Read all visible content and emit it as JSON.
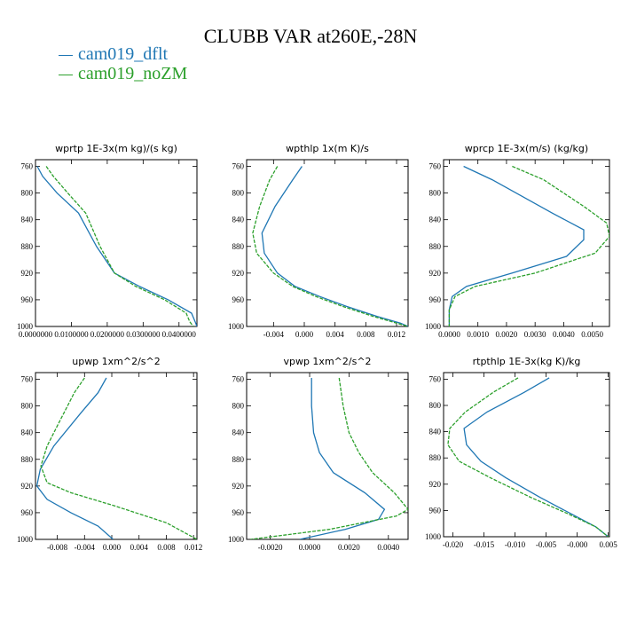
{
  "title": "CLUBB VAR at260E,-28N",
  "legend": [
    {
      "name": "cam019_dflt",
      "color": "#1f77b4"
    },
    {
      "name": "cam019_noZM",
      "color": "#2ca02c"
    }
  ],
  "chart_data": [
    {
      "type": "line",
      "title": "wprtp   1E-3x(m kg)/(s kg)",
      "xlim": [
        0.0,
        0.045
      ],
      "ylim": [
        1000,
        750
      ],
      "xticks": [
        0.0,
        0.01,
        0.02,
        0.03,
        0.04
      ],
      "xtick_labels": [
        "0.0000000",
        "0.0100000",
        "0.0200000",
        "0.0300000",
        "0.0400000"
      ],
      "yticks": [
        760,
        800,
        840,
        880,
        920,
        960,
        1000
      ],
      "series": [
        {
          "name": "cam019_dflt",
          "x": [
            0.0005,
            0.002,
            0.006,
            0.012,
            0.017,
            0.022,
            0.029,
            0.037,
            0.0435,
            0.0445,
            0.045
          ],
          "y": [
            760,
            775,
            800,
            830,
            880,
            920,
            940,
            960,
            980,
            993,
            1000
          ]
        },
        {
          "name": "cam019_noZM",
          "x": [
            0.003,
            0.005,
            0.009,
            0.014,
            0.018,
            0.022,
            0.028,
            0.036,
            0.042,
            0.043,
            0.044
          ],
          "y": [
            760,
            775,
            800,
            830,
            880,
            920,
            940,
            960,
            980,
            993,
            1000
          ]
        }
      ]
    },
    {
      "type": "line",
      "title": "wpthlp   1x(m K)/s",
      "xlim": [
        -0.0075,
        0.0135
      ],
      "ylim": [
        1000,
        750
      ],
      "xticks": [
        -0.004,
        0.0,
        0.004,
        0.008,
        0.012
      ],
      "xtick_labels": [
        "-0.004",
        "0.000",
        "0.004",
        "0.008",
        "0.012"
      ],
      "yticks": [
        760,
        800,
        840,
        880,
        920,
        960,
        1000
      ],
      "series": [
        {
          "name": "cam019_dflt",
          "x": [
            -0.0003,
            -0.0015,
            -0.0038,
            -0.0055,
            -0.0052,
            -0.0035,
            -0.0012,
            0.002,
            0.0055,
            0.0095,
            0.0125,
            0.0135
          ],
          "y": [
            760,
            780,
            820,
            860,
            890,
            920,
            940,
            955,
            970,
            985,
            995,
            1000
          ]
        },
        {
          "name": "cam019_noZM",
          "x": [
            -0.0035,
            -0.0045,
            -0.0058,
            -0.0067,
            -0.0062,
            -0.004,
            -0.0015,
            0.0015,
            0.005,
            0.009,
            0.012,
            0.0135
          ],
          "y": [
            760,
            780,
            820,
            860,
            890,
            920,
            940,
            955,
            970,
            985,
            995,
            1000
          ]
        }
      ]
    },
    {
      "type": "line",
      "title": "wprcp   1E-3x(m/s) (kg/kg)",
      "xlim": [
        -0.0002,
        0.0056
      ],
      "ylim": [
        1000,
        750
      ],
      "xticks": [
        0.0,
        0.001,
        0.002,
        0.003,
        0.004,
        0.005
      ],
      "xtick_labels": [
        "0.0000",
        "0.0010",
        "0.0020",
        "0.0030",
        "0.0040",
        "0.0050"
      ],
      "yticks": [
        760,
        800,
        840,
        880,
        920,
        960,
        1000
      ],
      "series": [
        {
          "name": "cam019_dflt",
          "x": [
            0.0005,
            0.0015,
            0.0036,
            0.0047,
            0.0047,
            0.0041,
            0.0022,
            0.0006,
            0.0001,
            0.0,
            0.0
          ],
          "y": [
            760,
            780,
            830,
            855,
            870,
            895,
            920,
            940,
            955,
            975,
            1000
          ]
        },
        {
          "name": "cam019_noZM",
          "x": [
            0.0022,
            0.0033,
            0.0047,
            0.0055,
            0.0056,
            0.0051,
            0.003,
            0.0009,
            0.0002,
            0.0,
            0.0
          ],
          "y": [
            760,
            780,
            820,
            845,
            865,
            890,
            920,
            940,
            955,
            975,
            1000
          ]
        }
      ]
    },
    {
      "type": "line",
      "title": "upwp   1xm^2/s^2",
      "xlim": [
        -0.0112,
        0.0125
      ],
      "ylim": [
        1000,
        750
      ],
      "xticks": [
        -0.008,
        -0.004,
        0.0,
        0.004,
        0.008,
        0.012
      ],
      "xtick_labels": [
        "-0.008",
        "-0.004",
        "0.000",
        "0.004",
        "0.008",
        "0.012"
      ],
      "yticks": [
        760,
        800,
        840,
        880,
        920,
        960,
        1000
      ],
      "series": [
        {
          "name": "cam019_dflt",
          "x": [
            -0.0008,
            -0.002,
            -0.0045,
            -0.0085,
            -0.0105,
            -0.011,
            -0.0095,
            -0.006,
            -0.002,
            0.0002
          ],
          "y": [
            758,
            780,
            810,
            860,
            895,
            920,
            940,
            960,
            980,
            1000
          ]
        },
        {
          "name": "cam019_noZM",
          "x": [
            -0.004,
            -0.0055,
            -0.0075,
            -0.0095,
            -0.0104,
            -0.0095,
            -0.006,
            0.0005,
            0.008,
            0.0125
          ],
          "y": [
            758,
            780,
            820,
            860,
            890,
            915,
            930,
            950,
            975,
            1000
          ]
        }
      ]
    },
    {
      "type": "line",
      "title": "vpwp   1xm^2/s^2",
      "xlim": [
        -0.0032,
        0.005
      ],
      "ylim": [
        1000,
        750
      ],
      "xticks": [
        -0.002,
        0.0,
        0.002,
        0.004
      ],
      "xtick_labels": [
        "-0.0020",
        "0.0000",
        "0.0020",
        "0.0040"
      ],
      "yticks": [
        760,
        800,
        840,
        880,
        920,
        960,
        1000
      ],
      "series": [
        {
          "name": "cam019_dflt",
          "x": [
            0.0001,
            0.0001,
            0.0002,
            0.0005,
            0.0012,
            0.0028,
            0.0038,
            0.0035,
            0.0018,
            -0.0005
          ],
          "y": [
            758,
            800,
            840,
            870,
            900,
            930,
            955,
            970,
            985,
            1000
          ]
        },
        {
          "name": "cam019_noZM",
          "x": [
            0.0015,
            0.0017,
            0.002,
            0.0025,
            0.0032,
            0.0043,
            0.005,
            0.0044,
            0.001,
            -0.003
          ],
          "y": [
            758,
            800,
            840,
            870,
            900,
            930,
            955,
            965,
            985,
            1000
          ]
        }
      ]
    },
    {
      "type": "line",
      "title": "rtpthlp   1E-3x(kg K)/kg",
      "xlim": [
        -0.0215,
        0.0052
      ],
      "ylim": [
        1000,
        750
      ],
      "xticks": [
        -0.02,
        -0.015,
        -0.01,
        -0.005,
        0.0,
        0.005
      ],
      "xtick_labels": [
        "-0.020",
        "-0.015",
        "-0.010",
        "-0.005",
        "-0.000",
        "0.005"
      ],
      "yticks": [
        760,
        800,
        840,
        880,
        920,
        960,
        1000
      ],
      "series": [
        {
          "name": "cam019_dflt",
          "x": [
            -0.0045,
            -0.0085,
            -0.0145,
            -0.0182,
            -0.0178,
            -0.0155,
            -0.0115,
            -0.006,
            -0.001,
            0.003,
            0.005
          ],
          "y": [
            758,
            780,
            810,
            835,
            860,
            885,
            910,
            940,
            965,
            985,
            1000
          ]
        },
        {
          "name": "cam019_noZM",
          "x": [
            -0.0095,
            -0.0135,
            -0.018,
            -0.0205,
            -0.0208,
            -0.019,
            -0.014,
            -0.0075,
            -0.0015,
            0.003,
            0.005
          ],
          "y": [
            758,
            780,
            810,
            835,
            860,
            885,
            910,
            940,
            965,
            985,
            1000
          ]
        }
      ]
    }
  ]
}
